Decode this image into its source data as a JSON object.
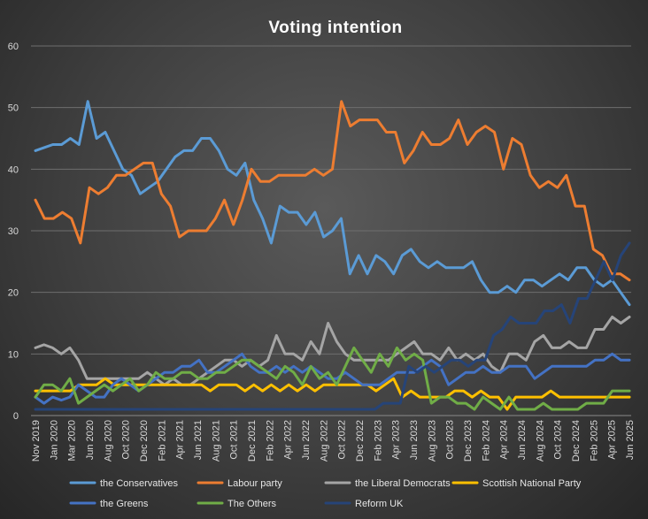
{
  "chart_data": {
    "type": "line",
    "title": "Voting  intention",
    "xlabel": "",
    "ylabel": "",
    "ylim": [
      0,
      60
    ],
    "yticks": [
      0,
      10,
      20,
      30,
      40,
      50,
      60
    ],
    "grid": "horizontal",
    "legend_position": "bottom",
    "x_tick_labels": [
      "Nov 2019",
      "Jan 2020",
      "Mar 2020",
      "Jun 2020",
      "Aug 2020",
      "Oct 2020",
      "Dec 2020",
      "Feb 2021",
      "Apr 2021",
      "Jun 2021",
      "Aug 2021",
      "Oct 2021",
      "Dec 2021",
      "Feb 2022",
      "Apr 2022",
      "Jun 2022",
      "Aug 2022",
      "Oct 2022",
      "Dec 2022",
      "Feb 2023",
      "Apr 2023",
      "Jun 2023",
      "Aug 2023",
      "Oct 2023",
      "Dec 2023",
      "Feb 2024",
      "Apr 2024",
      "Jun 2024",
      "Aug 2024",
      "Oct 2024",
      "Dec 2024",
      "Feb 2025",
      "Apr 2025",
      "Jun 2025"
    ],
    "series": [
      {
        "name": "the Conservatives",
        "color": "#5b9bd5",
        "values": [
          43,
          43.5,
          44,
          44,
          45,
          44,
          51,
          45,
          46,
          43,
          40,
          39,
          36,
          37,
          38,
          40,
          42,
          43,
          43,
          45,
          45,
          43,
          40,
          39,
          41,
          35,
          32,
          28,
          34,
          33,
          33,
          31,
          33,
          29,
          30,
          32,
          23,
          26,
          23,
          26,
          25,
          23,
          26,
          27,
          25,
          24,
          25,
          24,
          24,
          24,
          25,
          22,
          20,
          20,
          21,
          20,
          22,
          22,
          21,
          22,
          23,
          22,
          24,
          24,
          22,
          21,
          22,
          20,
          18
        ]
      },
      {
        "name": "Labour party",
        "color": "#ed7d31",
        "values": [
          35,
          32,
          32,
          33,
          32,
          28,
          37,
          36,
          37,
          39,
          39,
          40,
          41,
          41,
          36,
          34,
          29,
          30,
          30,
          30,
          32,
          35,
          31,
          35,
          40,
          38,
          38,
          39,
          39,
          39,
          39,
          40,
          39,
          40,
          51,
          47,
          48,
          48,
          48,
          46,
          46,
          41,
          43,
          46,
          44,
          44,
          45,
          48,
          44,
          46,
          47,
          46,
          40,
          45,
          44,
          39,
          37,
          38,
          37,
          39,
          34,
          34,
          27,
          26,
          23,
          23,
          22
        ]
      },
      {
        "name": "the Liberal Democrats",
        "color": "#a5a5a5",
        "values": [
          11,
          11.5,
          11,
          10,
          11,
          9,
          6,
          6,
          6,
          6,
          6,
          6,
          6,
          7,
          6,
          5,
          6,
          5,
          5,
          6,
          7,
          8,
          9,
          9,
          8,
          9,
          8,
          9,
          13,
          10,
          10,
          9,
          12,
          10,
          15,
          12,
          10,
          9,
          9,
          9,
          9,
          9,
          10,
          11,
          12,
          10,
          10,
          9,
          11,
          9,
          10,
          9,
          10,
          8,
          7,
          10,
          10,
          9,
          12,
          13,
          11,
          11,
          12,
          11,
          11,
          14,
          14,
          16,
          15,
          16
        ]
      },
      {
        "name": "Scottish National Party",
        "color": "#ffc000",
        "values": [
          4,
          4,
          4,
          4,
          4,
          5,
          5,
          5,
          6,
          5,
          5,
          5,
          5,
          5,
          5,
          5,
          5,
          5,
          5,
          5,
          4,
          5,
          5,
          5,
          4,
          5,
          4,
          5,
          4,
          5,
          4,
          5,
          4,
          5,
          5,
          5,
          5,
          5,
          5,
          4,
          5,
          6,
          3,
          4,
          3,
          3,
          3,
          3,
          4,
          4,
          3,
          4,
          3,
          3,
          1,
          3,
          3,
          3,
          3,
          4,
          3,
          3,
          3,
          3,
          3,
          3,
          3,
          3,
          3
        ]
      },
      {
        "name": "the Greens",
        "color": "#4472c4",
        "values": [
          3,
          2,
          3,
          2.5,
          3,
          5,
          4,
          3,
          3,
          5,
          6,
          5,
          4,
          5,
          6,
          7,
          7,
          8,
          8,
          9,
          7,
          7,
          8,
          9,
          10,
          8,
          7,
          7,
          8,
          7,
          8,
          7,
          8,
          7,
          6,
          6,
          7,
          6,
          5,
          5,
          5,
          6,
          7,
          7,
          7,
          8,
          9,
          8,
          5,
          6,
          7,
          7,
          8,
          7,
          7,
          8,
          8,
          8,
          6,
          7,
          8,
          8,
          8,
          8,
          8,
          9,
          9,
          10,
          9,
          9
        ]
      },
      {
        "name": "The Others",
        "color": "#70ad47",
        "values": [
          3,
          5,
          5,
          4,
          6,
          2,
          3,
          4,
          5,
          4,
          5,
          6,
          4,
          5,
          7,
          6,
          6,
          7,
          7,
          6,
          6,
          7,
          7,
          8,
          9,
          9,
          8,
          7,
          6,
          8,
          7,
          5,
          8,
          6,
          7,
          5,
          8,
          11,
          9,
          7,
          10,
          8,
          11,
          9,
          10,
          9,
          2,
          3,
          3,
          2,
          2,
          1,
          3,
          2,
          1,
          3,
          1,
          1,
          1,
          2,
          1,
          1,
          1,
          1,
          2,
          2,
          2,
          4,
          4,
          4
        ]
      },
      {
        "name": "Reform UK",
        "color": "#264478",
        "values": [
          1,
          1,
          1,
          1,
          1,
          1,
          1,
          1,
          1,
          1,
          1,
          1,
          1,
          1,
          1,
          1,
          1,
          1,
          1,
          1,
          1,
          1,
          1,
          1,
          1,
          1,
          1,
          1,
          1,
          1,
          1,
          1,
          1,
          1,
          1,
          1,
          1,
          1,
          1,
          1,
          1,
          2,
          2,
          2,
          8,
          7,
          8,
          7,
          8,
          9,
          9,
          8,
          9,
          9,
          13,
          14,
          16,
          15,
          15,
          15,
          17,
          17,
          18,
          15,
          19,
          19,
          22,
          25,
          22,
          26,
          28
        ]
      }
    ]
  }
}
